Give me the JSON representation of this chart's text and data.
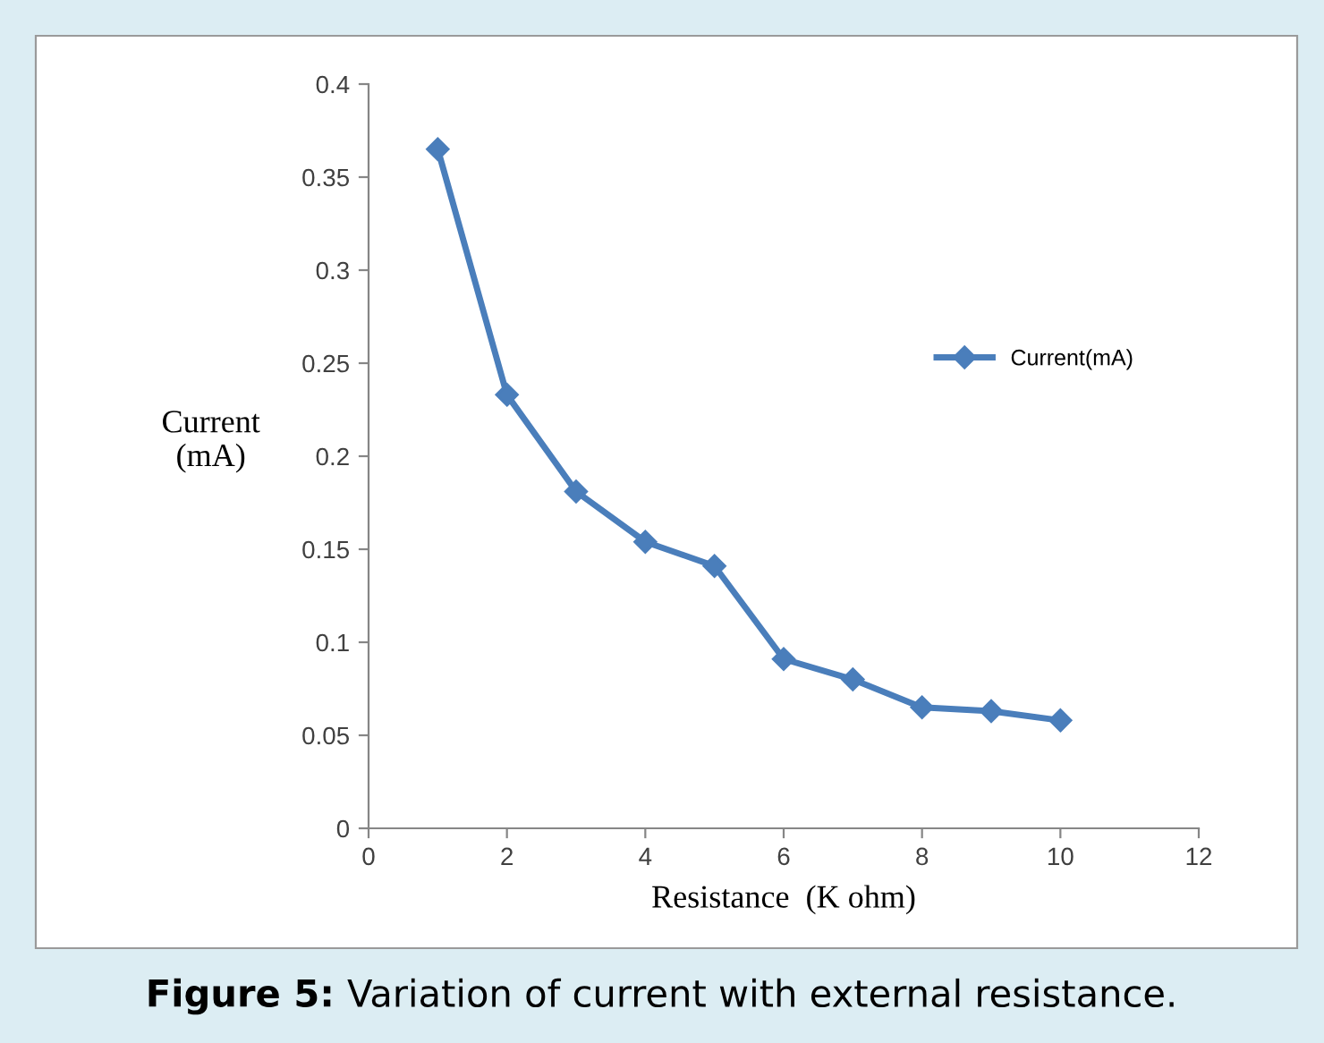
{
  "chart_data": {
    "type": "line",
    "xlabel": "Resistance  (K ohm)",
    "ylabel": "Current\n(mA)",
    "x": [
      1,
      2,
      3,
      4,
      5,
      6,
      7,
      8,
      9,
      10
    ],
    "series": [
      {
        "name": "Current(mA)",
        "color": "#4a7ebb",
        "values": [
          0.365,
          0.233,
          0.181,
          0.154,
          0.141,
          0.091,
          0.08,
          0.065,
          0.063,
          0.058
        ]
      }
    ],
    "xlim": [
      0,
      12
    ],
    "xticks": [
      0,
      2,
      4,
      6,
      8,
      10,
      12
    ],
    "ylim": [
      0,
      0.4
    ],
    "yticks": [
      0,
      0.05,
      0.1,
      0.15,
      0.2,
      0.25,
      0.3,
      0.35,
      0.4
    ],
    "marker": "diamond",
    "line_style": "solid",
    "grid": false,
    "legend": "right",
    "annotations": [
      "Figure 5: Variation of current with external resistance."
    ]
  }
}
